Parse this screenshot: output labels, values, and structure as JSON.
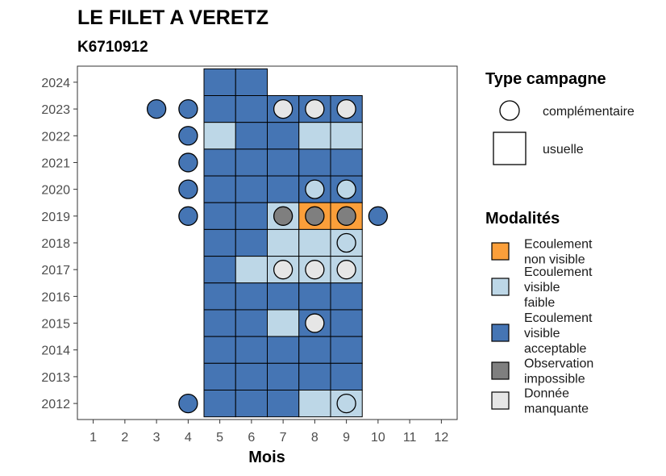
{
  "chart_data": {
    "type": "heatmap",
    "title": "LE FILET A VERETZ",
    "subtitle": "K6710912",
    "xlabel": "Mois",
    "ylabel": "",
    "x_ticks": [
      1,
      2,
      3,
      4,
      5,
      6,
      7,
      8,
      9,
      10,
      11,
      12
    ],
    "y_ticks": [
      2012,
      2013,
      2014,
      2015,
      2016,
      2017,
      2018,
      2019,
      2020,
      2021,
      2022,
      2023,
      2024
    ],
    "xlim": [
      0.5,
      12.5
    ],
    "ylim": [
      2011.4,
      2024.6
    ],
    "colors": {
      "A": "#fb9f3a",
      "B": "#bdd7e7",
      "C": "#4575b4",
      "D": "#7f7f7f",
      "E": "#e6e6e6"
    },
    "legend_type": {
      "title": "Type campagne",
      "entries": [
        {
          "shape": "circle",
          "label": "complémentaire"
        },
        {
          "shape": "square",
          "label": "usuelle"
        }
      ]
    },
    "legend_modalites": {
      "title": "Modalités",
      "entries": [
        {
          "key": "A",
          "label": "Ecoulement non visible",
          "lines": [
            "Ecoulement",
            "non visible"
          ]
        },
        {
          "key": "B",
          "label": "Ecoulement visible faible",
          "lines": [
            "Ecoulement",
            "visible",
            "faible"
          ]
        },
        {
          "key": "C",
          "label": "Ecoulement visible acceptable",
          "lines": [
            "Ecoulement",
            "visible",
            "acceptable"
          ]
        },
        {
          "key": "D",
          "label": "Observation impossible",
          "lines": [
            "Observation",
            "impossible"
          ]
        },
        {
          "key": "E",
          "label": "Donnée manquante",
          "lines": [
            "Donnée",
            "manquante"
          ]
        }
      ]
    },
    "squares": [
      {
        "year": 2024,
        "month": 5,
        "mod": "C"
      },
      {
        "year": 2024,
        "month": 6,
        "mod": "C"
      },
      {
        "year": 2023,
        "month": 5,
        "mod": "C"
      },
      {
        "year": 2023,
        "month": 6,
        "mod": "C"
      },
      {
        "year": 2023,
        "month": 7,
        "mod": "C"
      },
      {
        "year": 2023,
        "month": 8,
        "mod": "C"
      },
      {
        "year": 2023,
        "month": 9,
        "mod": "C"
      },
      {
        "year": 2022,
        "month": 5,
        "mod": "B"
      },
      {
        "year": 2022,
        "month": 6,
        "mod": "C"
      },
      {
        "year": 2022,
        "month": 7,
        "mod": "C"
      },
      {
        "year": 2022,
        "month": 8,
        "mod": "B"
      },
      {
        "year": 2022,
        "month": 9,
        "mod": "B"
      },
      {
        "year": 2021,
        "month": 5,
        "mod": "C"
      },
      {
        "year": 2021,
        "month": 6,
        "mod": "C"
      },
      {
        "year": 2021,
        "month": 7,
        "mod": "C"
      },
      {
        "year": 2021,
        "month": 8,
        "mod": "C"
      },
      {
        "year": 2021,
        "month": 9,
        "mod": "C"
      },
      {
        "year": 2020,
        "month": 5,
        "mod": "C"
      },
      {
        "year": 2020,
        "month": 6,
        "mod": "C"
      },
      {
        "year": 2020,
        "month": 7,
        "mod": "C"
      },
      {
        "year": 2020,
        "month": 8,
        "mod": "C"
      },
      {
        "year": 2020,
        "month": 9,
        "mod": "C"
      },
      {
        "year": 2019,
        "month": 5,
        "mod": "C"
      },
      {
        "year": 2019,
        "month": 6,
        "mod": "C"
      },
      {
        "year": 2019,
        "month": 7,
        "mod": "B"
      },
      {
        "year": 2019,
        "month": 8,
        "mod": "A"
      },
      {
        "year": 2019,
        "month": 9,
        "mod": "A"
      },
      {
        "year": 2018,
        "month": 5,
        "mod": "C"
      },
      {
        "year": 2018,
        "month": 6,
        "mod": "C"
      },
      {
        "year": 2018,
        "month": 7,
        "mod": "B"
      },
      {
        "year": 2018,
        "month": 8,
        "mod": "B"
      },
      {
        "year": 2018,
        "month": 9,
        "mod": "B"
      },
      {
        "year": 2017,
        "month": 5,
        "mod": "C"
      },
      {
        "year": 2017,
        "month": 6,
        "mod": "B"
      },
      {
        "year": 2017,
        "month": 7,
        "mod": "B"
      },
      {
        "year": 2017,
        "month": 8,
        "mod": "B"
      },
      {
        "year": 2017,
        "month": 9,
        "mod": "B"
      },
      {
        "year": 2016,
        "month": 5,
        "mod": "C"
      },
      {
        "year": 2016,
        "month": 6,
        "mod": "C"
      },
      {
        "year": 2016,
        "month": 7,
        "mod": "C"
      },
      {
        "year": 2016,
        "month": 8,
        "mod": "C"
      },
      {
        "year": 2016,
        "month": 9,
        "mod": "C"
      },
      {
        "year": 2015,
        "month": 5,
        "mod": "C"
      },
      {
        "year": 2015,
        "month": 6,
        "mod": "C"
      },
      {
        "year": 2015,
        "month": 7,
        "mod": "B"
      },
      {
        "year": 2015,
        "month": 8,
        "mod": "C"
      },
      {
        "year": 2015,
        "month": 9,
        "mod": "C"
      },
      {
        "year": 2014,
        "month": 5,
        "mod": "C"
      },
      {
        "year": 2014,
        "month": 6,
        "mod": "C"
      },
      {
        "year": 2014,
        "month": 7,
        "mod": "C"
      },
      {
        "year": 2014,
        "month": 8,
        "mod": "C"
      },
      {
        "year": 2014,
        "month": 9,
        "mod": "C"
      },
      {
        "year": 2013,
        "month": 5,
        "mod": "C"
      },
      {
        "year": 2013,
        "month": 6,
        "mod": "C"
      },
      {
        "year": 2013,
        "month": 7,
        "mod": "C"
      },
      {
        "year": 2013,
        "month": 8,
        "mod": "C"
      },
      {
        "year": 2013,
        "month": 9,
        "mod": "C"
      },
      {
        "year": 2012,
        "month": 5,
        "mod": "C"
      },
      {
        "year": 2012,
        "month": 6,
        "mod": "C"
      },
      {
        "year": 2012,
        "month": 7,
        "mod": "C"
      },
      {
        "year": 2012,
        "month": 8,
        "mod": "B"
      },
      {
        "year": 2012,
        "month": 9,
        "mod": "B"
      }
    ],
    "circles": [
      {
        "year": 2023,
        "month": 3,
        "mod": "C"
      },
      {
        "year": 2023,
        "month": 4,
        "mod": "C"
      },
      {
        "year": 2023,
        "month": 7,
        "mod": "E"
      },
      {
        "year": 2023,
        "month": 8,
        "mod": "E"
      },
      {
        "year": 2023,
        "month": 9,
        "mod": "E"
      },
      {
        "year": 2022,
        "month": 4,
        "mod": "C"
      },
      {
        "year": 2021,
        "month": 4,
        "mod": "C"
      },
      {
        "year": 2020,
        "month": 4,
        "mod": "C"
      },
      {
        "year": 2020,
        "month": 8,
        "mod": "B"
      },
      {
        "year": 2020,
        "month": 9,
        "mod": "B"
      },
      {
        "year": 2019,
        "month": 4,
        "mod": "C"
      },
      {
        "year": 2019,
        "month": 7,
        "mod": "D"
      },
      {
        "year": 2019,
        "month": 8,
        "mod": "D"
      },
      {
        "year": 2019,
        "month": 9,
        "mod": "D"
      },
      {
        "year": 2019,
        "month": 10,
        "mod": "C"
      },
      {
        "year": 2018,
        "month": 9,
        "mod": "B"
      },
      {
        "year": 2017,
        "month": 7,
        "mod": "E"
      },
      {
        "year": 2017,
        "month": 8,
        "mod": "E"
      },
      {
        "year": 2017,
        "month": 9,
        "mod": "E"
      },
      {
        "year": 2015,
        "month": 8,
        "mod": "E"
      },
      {
        "year": 2012,
        "month": 4,
        "mod": "C"
      },
      {
        "year": 2012,
        "month": 9,
        "mod": "B"
      }
    ]
  }
}
